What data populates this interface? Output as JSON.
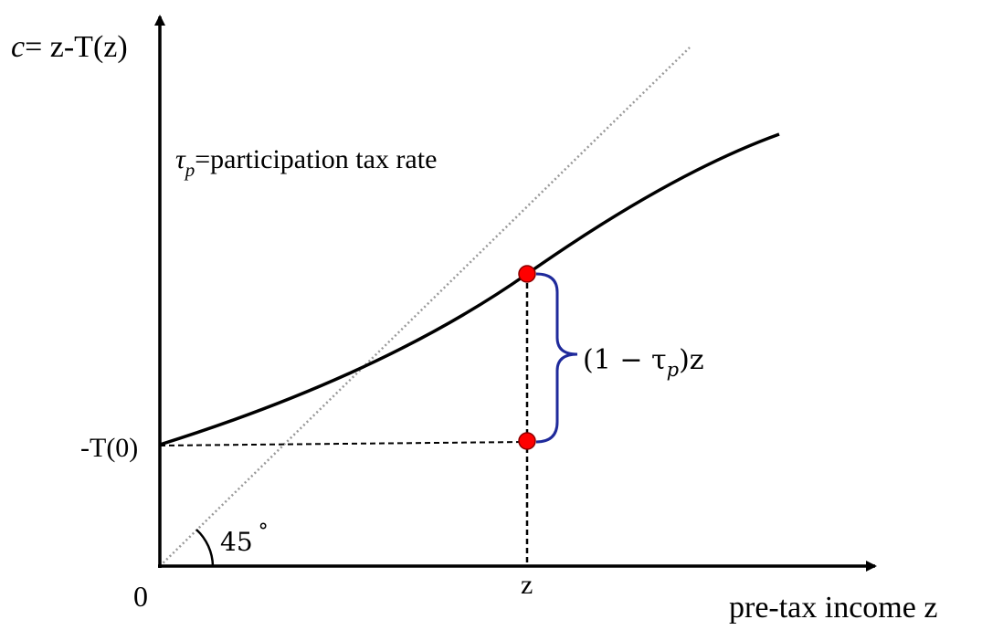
{
  "diagram": {
    "y_axis_label_c": "c",
    "y_axis_label_rest": "= z-T(z)",
    "x_axis_label": "pre-tax income z",
    "origin_label": "0",
    "intercept_label": "-T(0)",
    "z_tick_label": "z",
    "angle_label": "45",
    "angle_degree": "°",
    "legend_tau": "τ",
    "legend_sub": "p",
    "legend_text": "=participation tax rate",
    "brace_label_open": "(1 − τ",
    "brace_label_sub": "p",
    "brace_label_close": ")z",
    "colors": {
      "axis": "#000000",
      "curve": "#000000",
      "diagonal": "#999999",
      "brace": "#1f2a9b",
      "point_fill": "#ff0000",
      "point_stroke": "#8b0000"
    }
  }
}
